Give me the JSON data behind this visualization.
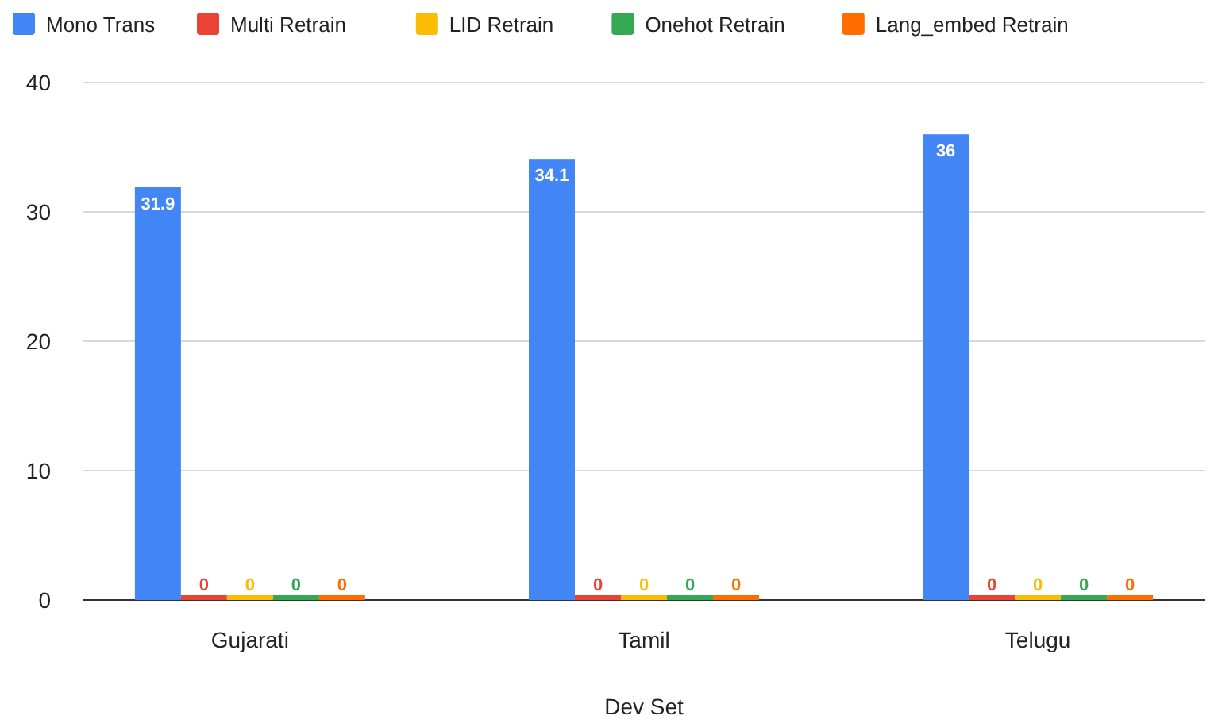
{
  "chart_data": {
    "type": "bar",
    "xlabel": "Dev Set",
    "categories": [
      "Gujarati",
      "Tamil",
      "Telugu"
    ],
    "series": [
      {
        "name": "Mono Trans",
        "color": "#4285f4",
        "values": [
          31.9,
          34.1,
          36
        ]
      },
      {
        "name": "Multi Retrain",
        "color": "#ea4335",
        "values": [
          0,
          0,
          0
        ]
      },
      {
        "name": "LID Retrain",
        "color": "#fbbc04",
        "values": [
          0,
          0,
          0
        ]
      },
      {
        "name": "Onehot Retrain",
        "color": "#34a853",
        "values": [
          0,
          0,
          0
        ]
      },
      {
        "name": "Lang_embed Retrain",
        "color": "#ff6d01",
        "values": [
          0,
          0,
          0
        ]
      }
    ],
    "ylim": [
      0,
      40
    ],
    "yticks": [
      0,
      10,
      20,
      30,
      40
    ],
    "grid": "y",
    "legend": "top",
    "data_labels": true
  }
}
